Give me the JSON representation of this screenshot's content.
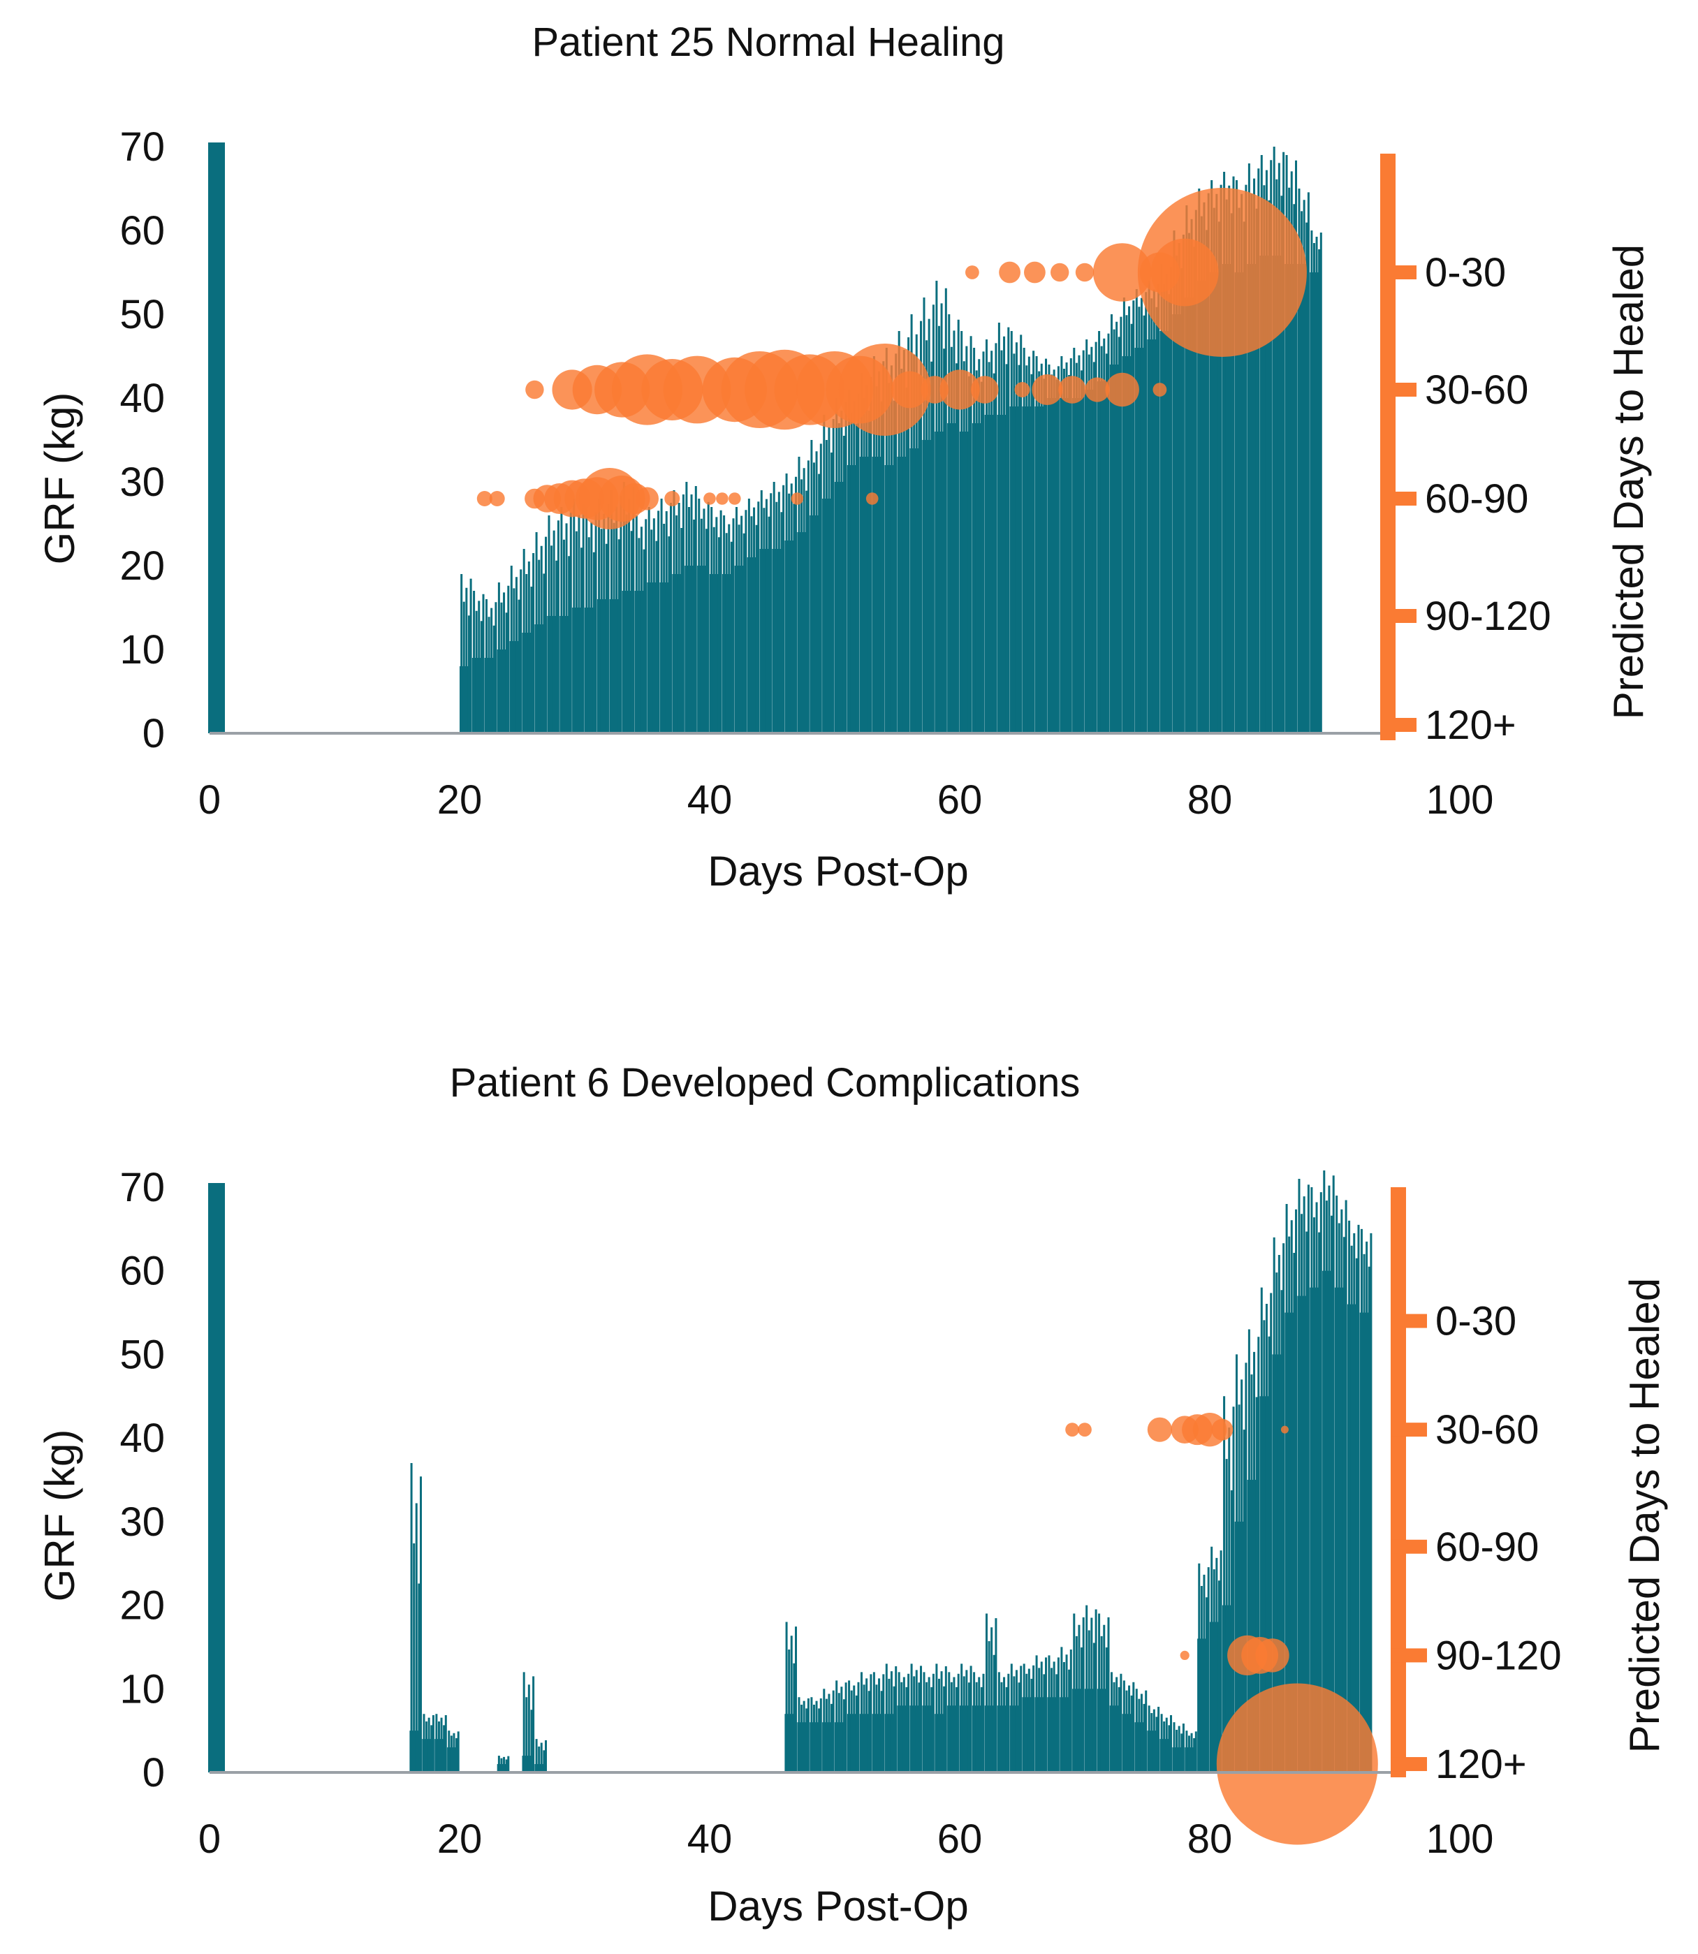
{
  "colors": {
    "grf": "#0a6e7e",
    "prediction": "#fa7b33",
    "axis": "#9aa0a6",
    "text": "#111111"
  },
  "chart_data": [
    {
      "type": "bar",
      "title": "Patient 25 Normal Healing",
      "xlabel": "Days Post-Op",
      "ylabel": "GRF (kg)",
      "y2label": "Predicted Days to Healed",
      "xlim": [
        0,
        100
      ],
      "ylim": [
        0,
        70
      ],
      "x_ticks": [
        "0",
        "20",
        "40",
        "60",
        "80",
        "100"
      ],
      "y_ticks": [
        "0",
        "10",
        "20",
        "30",
        "40",
        "50",
        "60",
        "70"
      ],
      "y2_categories": [
        "0-30",
        "30-60",
        "60-90",
        "90-120",
        "120+"
      ],
      "y2_category_grf_levels": [
        55,
        41,
        28,
        14,
        1
      ],
      "grf_bursts": [
        {
          "day": 20,
          "base": 8,
          "peak": 19
        },
        {
          "day": 21,
          "base": 9,
          "peak": 17
        },
        {
          "day": 22,
          "base": 9,
          "peak": 16
        },
        {
          "day": 23,
          "base": 10,
          "peak": 18
        },
        {
          "day": 24,
          "base": 11,
          "peak": 20
        },
        {
          "day": 25,
          "base": 12,
          "peak": 22
        },
        {
          "day": 26,
          "base": 13,
          "peak": 24
        },
        {
          "day": 27,
          "base": 14,
          "peak": 26
        },
        {
          "day": 28,
          "base": 14,
          "peak": 27
        },
        {
          "day": 29,
          "base": 15,
          "peak": 28
        },
        {
          "day": 30,
          "base": 15,
          "peak": 27
        },
        {
          "day": 31,
          "base": 16,
          "peak": 28
        },
        {
          "day": 32,
          "base": 16,
          "peak": 29
        },
        {
          "day": 33,
          "base": 17,
          "peak": 30
        },
        {
          "day": 34,
          "base": 17,
          "peak": 26
        },
        {
          "day": 35,
          "base": 18,
          "peak": 27
        },
        {
          "day": 36,
          "base": 18,
          "peak": 28
        },
        {
          "day": 37,
          "base": 19,
          "peak": 29
        },
        {
          "day": 38,
          "base": 20,
          "peak": 30
        },
        {
          "day": 39,
          "base": 20,
          "peak": 28
        },
        {
          "day": 40,
          "base": 19,
          "peak": 27
        },
        {
          "day": 41,
          "base": 19,
          "peak": 26
        },
        {
          "day": 42,
          "base": 20,
          "peak": 27
        },
        {
          "day": 43,
          "base": 21,
          "peak": 28
        },
        {
          "day": 44,
          "base": 22,
          "peak": 29
        },
        {
          "day": 45,
          "base": 22,
          "peak": 30
        },
        {
          "day": 46,
          "base": 23,
          "peak": 31
        },
        {
          "day": 47,
          "base": 24,
          "peak": 33
        },
        {
          "day": 48,
          "base": 26,
          "peak": 35
        },
        {
          "day": 49,
          "base": 28,
          "peak": 38
        },
        {
          "day": 50,
          "base": 30,
          "peak": 40
        },
        {
          "day": 51,
          "base": 32,
          "peak": 41
        },
        {
          "day": 52,
          "base": 33,
          "peak": 43
        },
        {
          "day": 53,
          "base": 33,
          "peak": 45
        },
        {
          "day": 54,
          "base": 32,
          "peak": 46
        },
        {
          "day": 55,
          "base": 33,
          "peak": 48
        },
        {
          "day": 56,
          "base": 34,
          "peak": 50
        },
        {
          "day": 57,
          "base": 35,
          "peak": 52
        },
        {
          "day": 58,
          "base": 36,
          "peak": 54
        },
        {
          "day": 59,
          "base": 37,
          "peak": 50
        },
        {
          "day": 60,
          "base": 36,
          "peak": 48
        },
        {
          "day": 61,
          "base": 37,
          "peak": 46
        },
        {
          "day": 62,
          "base": 38,
          "peak": 47
        },
        {
          "day": 63,
          "base": 38,
          "peak": 49
        },
        {
          "day": 64,
          "base": 39,
          "peak": 48
        },
        {
          "day": 65,
          "base": 39,
          "peak": 46
        },
        {
          "day": 66,
          "base": 39,
          "peak": 45
        },
        {
          "day": 67,
          "base": 40,
          "peak": 44
        },
        {
          "day": 68,
          "base": 40,
          "peak": 45
        },
        {
          "day": 69,
          "base": 40,
          "peak": 46
        },
        {
          "day": 70,
          "base": 41,
          "peak": 47
        },
        {
          "day": 71,
          "base": 42,
          "peak": 48
        },
        {
          "day": 72,
          "base": 44,
          "peak": 50
        },
        {
          "day": 73,
          "base": 45,
          "peak": 52
        },
        {
          "day": 74,
          "base": 46,
          "peak": 53
        },
        {
          "day": 75,
          "base": 47,
          "peak": 54
        },
        {
          "day": 76,
          "base": 48,
          "peak": 56
        },
        {
          "day": 77,
          "base": 50,
          "peak": 60
        },
        {
          "day": 78,
          "base": 52,
          "peak": 63
        },
        {
          "day": 79,
          "base": 54,
          "peak": 65
        },
        {
          "day": 80,
          "base": 55,
          "peak": 66
        },
        {
          "day": 81,
          "base": 56,
          "peak": 67
        },
        {
          "day": 82,
          "base": 55,
          "peak": 66
        },
        {
          "day": 83,
          "base": 56,
          "peak": 68
        },
        {
          "day": 84,
          "base": 57,
          "peak": 69
        },
        {
          "day": 85,
          "base": 57,
          "peak": 70
        },
        {
          "day": 86,
          "base": 56,
          "peak": 69
        },
        {
          "day": 87,
          "base": 56,
          "peak": 65
        },
        {
          "day": 88,
          "base": 55,
          "peak": 60
        }
      ],
      "predictions": [
        {
          "day": 22,
          "category": "60-90",
          "size": 1
        },
        {
          "day": 23,
          "category": "60-90",
          "size": 1
        },
        {
          "day": 26,
          "category": "60-90",
          "size": 1.3
        },
        {
          "day": 27,
          "category": "60-90",
          "size": 1.8
        },
        {
          "day": 28,
          "category": "60-90",
          "size": 2
        },
        {
          "day": 29,
          "category": "60-90",
          "size": 2.4
        },
        {
          "day": 30,
          "category": "60-90",
          "size": 2.6
        },
        {
          "day": 31,
          "category": "60-90",
          "size": 2.8
        },
        {
          "day": 32,
          "category": "60-90",
          "size": 4
        },
        {
          "day": 33,
          "category": "60-90",
          "size": 3
        },
        {
          "day": 34,
          "category": "60-90",
          "size": 2
        },
        {
          "day": 35,
          "category": "60-90",
          "size": 1.5
        },
        {
          "day": 37,
          "category": "60-90",
          "size": 1
        },
        {
          "day": 40,
          "category": "60-90",
          "size": 0.8
        },
        {
          "day": 41,
          "category": "60-90",
          "size": 0.8
        },
        {
          "day": 42,
          "category": "60-90",
          "size": 0.8
        },
        {
          "day": 47,
          "category": "60-90",
          "size": 0.8
        },
        {
          "day": 53,
          "category": "60-90",
          "size": 0.8
        },
        {
          "day": 26,
          "category": "30-60",
          "size": 1.2
        },
        {
          "day": 29,
          "category": "30-60",
          "size": 2.6
        },
        {
          "day": 31,
          "category": "30-60",
          "size": 3.2
        },
        {
          "day": 33,
          "category": "30-60",
          "size": 3.6
        },
        {
          "day": 35,
          "category": "30-60",
          "size": 4.6
        },
        {
          "day": 37,
          "category": "30-60",
          "size": 4
        },
        {
          "day": 39,
          "category": "30-60",
          "size": 4.4
        },
        {
          "day": 42,
          "category": "30-60",
          "size": 4.2
        },
        {
          "day": 44,
          "category": "30-60",
          "size": 5
        },
        {
          "day": 46,
          "category": "30-60",
          "size": 5.2
        },
        {
          "day": 48,
          "category": "30-60",
          "size": 4.6
        },
        {
          "day": 50,
          "category": "30-60",
          "size": 5
        },
        {
          "day": 52,
          "category": "30-60",
          "size": 4.4
        },
        {
          "day": 54,
          "category": "30-60",
          "size": 6
        },
        {
          "day": 56,
          "category": "30-60",
          "size": 2.4
        },
        {
          "day": 58,
          "category": "30-60",
          "size": 1.8
        },
        {
          "day": 60,
          "category": "30-60",
          "size": 2.6
        },
        {
          "day": 62,
          "category": "30-60",
          "size": 1.8
        },
        {
          "day": 65,
          "category": "30-60",
          "size": 1
        },
        {
          "day": 67,
          "category": "30-60",
          "size": 2
        },
        {
          "day": 69,
          "category": "30-60",
          "size": 1.8
        },
        {
          "day": 71,
          "category": "30-60",
          "size": 1.6
        },
        {
          "day": 73,
          "category": "30-60",
          "size": 2.2
        },
        {
          "day": 76,
          "category": "30-60",
          "size": 0.9
        },
        {
          "day": 61,
          "category": "0-30",
          "size": 0.9
        },
        {
          "day": 64,
          "category": "0-30",
          "size": 1.4
        },
        {
          "day": 66,
          "category": "0-30",
          "size": 1.4
        },
        {
          "day": 68,
          "category": "0-30",
          "size": 1.2
        },
        {
          "day": 70,
          "category": "0-30",
          "size": 1.2
        },
        {
          "day": 73,
          "category": "0-30",
          "size": 3.8
        },
        {
          "day": 76,
          "category": "0-30",
          "size": 2.6
        },
        {
          "day": 78,
          "category": "0-30",
          "size": 4.4
        },
        {
          "day": 81,
          "category": "0-30",
          "size": 11
        }
      ]
    },
    {
      "type": "bar",
      "title": "Patient 6 Developed Complications",
      "xlabel": "Days Post-Op",
      "ylabel": "GRF (kg)",
      "y2label": "Predicted Days to Healed",
      "xlim": [
        0,
        100
      ],
      "ylim": [
        0,
        70
      ],
      "x_ticks": [
        "0",
        "20",
        "40",
        "60",
        "80",
        "100"
      ],
      "y_ticks": [
        "0",
        "10",
        "20",
        "30",
        "40",
        "50",
        "60",
        "70"
      ],
      "y2_categories": [
        "0-30",
        "30-60",
        "60-90",
        "90-120",
        "120+"
      ],
      "y2_category_grf_levels": [
        54,
        41,
        27,
        14,
        1
      ],
      "grf_bursts": [
        {
          "day": 16,
          "base": 5,
          "peak": 37
        },
        {
          "day": 17,
          "base": 4,
          "peak": 7
        },
        {
          "day": 18,
          "base": 4,
          "peak": 7
        },
        {
          "day": 19,
          "base": 3,
          "peak": 5
        },
        {
          "day": 23,
          "base": 1,
          "peak": 2
        },
        {
          "day": 25,
          "base": 2,
          "peak": 12
        },
        {
          "day": 26,
          "base": 1,
          "peak": 4
        },
        {
          "day": 46,
          "base": 7,
          "peak": 18
        },
        {
          "day": 47,
          "base": 6,
          "peak": 9
        },
        {
          "day": 48,
          "base": 6,
          "peak": 9
        },
        {
          "day": 49,
          "base": 6,
          "peak": 10
        },
        {
          "day": 50,
          "base": 6,
          "peak": 11
        },
        {
          "day": 51,
          "base": 7,
          "peak": 11
        },
        {
          "day": 52,
          "base": 7,
          "peak": 12
        },
        {
          "day": 53,
          "base": 7,
          "peak": 12
        },
        {
          "day": 54,
          "base": 7,
          "peak": 13
        },
        {
          "day": 55,
          "base": 8,
          "peak": 12
        },
        {
          "day": 56,
          "base": 8,
          "peak": 13
        },
        {
          "day": 57,
          "base": 8,
          "peak": 12
        },
        {
          "day": 58,
          "base": 7,
          "peak": 13
        },
        {
          "day": 59,
          "base": 8,
          "peak": 12
        },
        {
          "day": 60,
          "base": 8,
          "peak": 13
        },
        {
          "day": 61,
          "base": 8,
          "peak": 12
        },
        {
          "day": 62,
          "base": 8,
          "peak": 19
        },
        {
          "day": 63,
          "base": 8,
          "peak": 12
        },
        {
          "day": 64,
          "base": 8,
          "peak": 13
        },
        {
          "day": 65,
          "base": 9,
          "peak": 13
        },
        {
          "day": 66,
          "base": 9,
          "peak": 14
        },
        {
          "day": 67,
          "base": 9,
          "peak": 14
        },
        {
          "day": 68,
          "base": 9,
          "peak": 15
        },
        {
          "day": 69,
          "base": 10,
          "peak": 19
        },
        {
          "day": 70,
          "base": 10,
          "peak": 20
        },
        {
          "day": 71,
          "base": 10,
          "peak": 19
        },
        {
          "day": 72,
          "base": 8,
          "peak": 12
        },
        {
          "day": 73,
          "base": 7,
          "peak": 11
        },
        {
          "day": 74,
          "base": 6,
          "peak": 10
        },
        {
          "day": 75,
          "base": 5,
          "peak": 8
        },
        {
          "day": 76,
          "base": 4,
          "peak": 7
        },
        {
          "day": 77,
          "base": 3,
          "peak": 6
        },
        {
          "day": 78,
          "base": 3,
          "peak": 5
        },
        {
          "day": 79,
          "base": 16,
          "peak": 25
        },
        {
          "day": 80,
          "base": 18,
          "peak": 27
        },
        {
          "day": 81,
          "base": 20,
          "peak": 45
        },
        {
          "day": 82,
          "base": 30,
          "peak": 50
        },
        {
          "day": 83,
          "base": 35,
          "peak": 53
        },
        {
          "day": 84,
          "base": 45,
          "peak": 58
        },
        {
          "day": 85,
          "base": 50,
          "peak": 64
        },
        {
          "day": 86,
          "base": 55,
          "peak": 68
        },
        {
          "day": 87,
          "base": 57,
          "peak": 71
        },
        {
          "day": 88,
          "base": 58,
          "peak": 70
        },
        {
          "day": 89,
          "base": 60,
          "peak": 72
        },
        {
          "day": 90,
          "base": 58,
          "peak": 69
        },
        {
          "day": 91,
          "base": 56,
          "peak": 66
        },
        {
          "day": 92,
          "base": 55,
          "peak": 65
        }
      ],
      "predictions": [
        {
          "day": 69,
          "category": "30-60",
          "size": 0.9
        },
        {
          "day": 70,
          "category": "30-60",
          "size": 0.9
        },
        {
          "day": 76,
          "category": "30-60",
          "size": 1.6
        },
        {
          "day": 78,
          "category": "30-60",
          "size": 1.8
        },
        {
          "day": 79,
          "category": "30-60",
          "size": 2
        },
        {
          "day": 80,
          "category": "30-60",
          "size": 2.2
        },
        {
          "day": 81,
          "category": "30-60",
          "size": 1.4
        },
        {
          "day": 86,
          "category": "30-60",
          "size": 0.5
        },
        {
          "day": 78,
          "category": "90-120",
          "size": 0.6
        },
        {
          "day": 83,
          "category": "90-120",
          "size": 2.6
        },
        {
          "day": 84,
          "category": "90-120",
          "size": 2.4
        },
        {
          "day": 85,
          "category": "90-120",
          "size": 2.2
        },
        {
          "day": 87,
          "category": "120+",
          "size": 10.5
        }
      ]
    }
  ]
}
